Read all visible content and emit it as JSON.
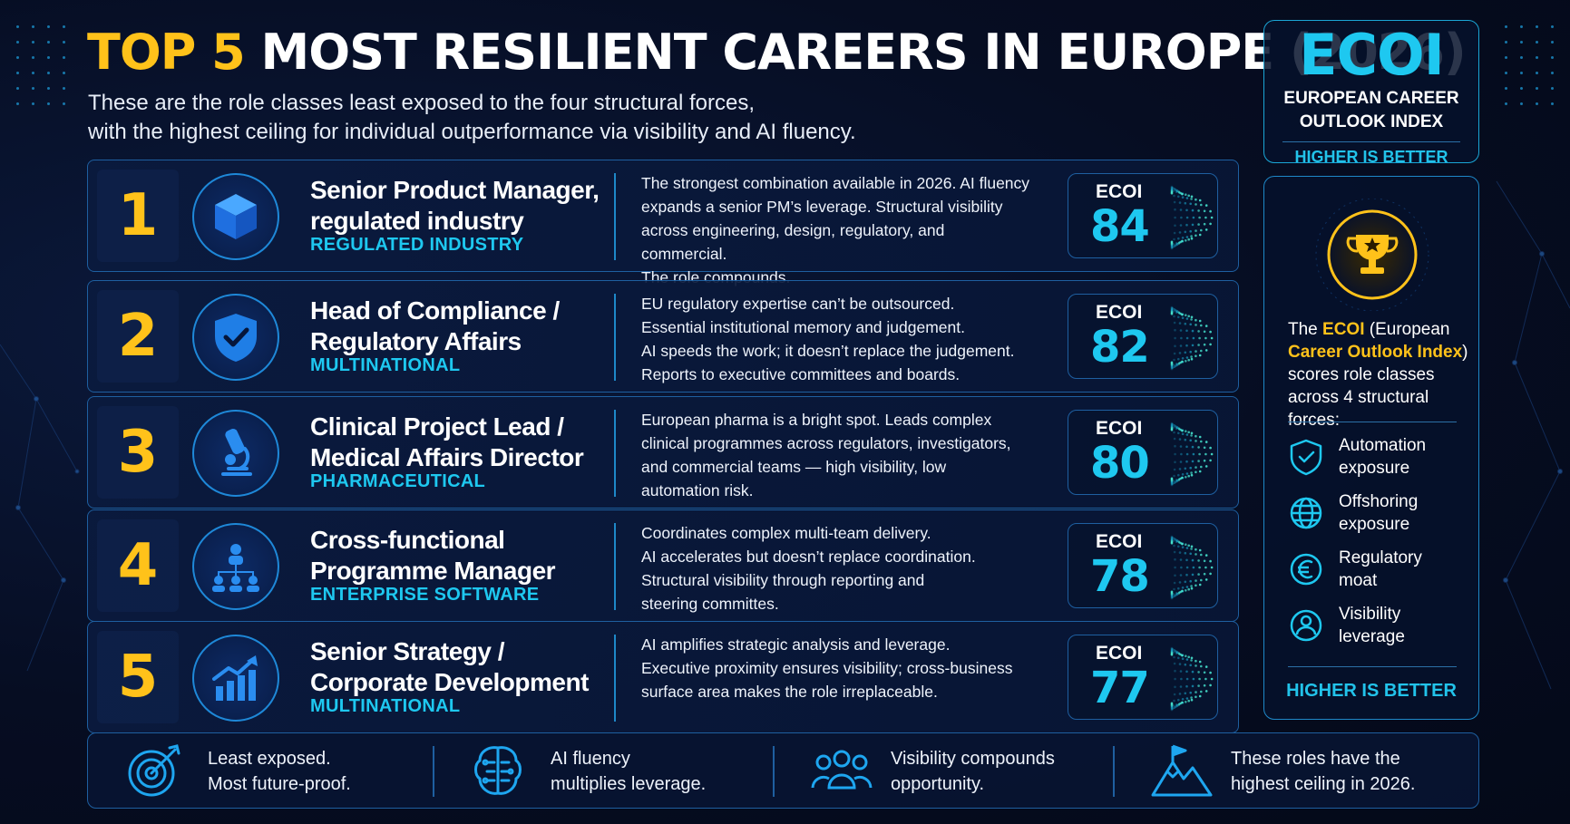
{
  "header": {
    "title_accent": "TOP 5",
    "title_rest": "MOST RESILIENT CAREERS IN EUROPE (2026)",
    "subtitle_line1": "These are the role classes least exposed to the four structural forces,",
    "subtitle_line2": "with the highest ceiling for individual outperformance via visibility and AI fluency."
  },
  "badge": {
    "acronym": "ECOI",
    "name_line1": "EUROPEAN CAREER",
    "name_line2": "OUTLOOK INDEX",
    "note": "HIGHER IS BETTER"
  },
  "careers": [
    {
      "rank": "1",
      "icon": "cube-icon",
      "role_line1": "Senior Product Manager,",
      "role_line2": "regulated industry",
      "sector": "REGULATED INDUSTRY",
      "description": [
        "The strongest combination available in 2026. AI fluency",
        "expands a senior PM’s leverage. Structural visibility",
        "across engineering, design, regulatory, and commercial.",
        "The role compounds."
      ],
      "score_label": "ECOI",
      "score": 84
    },
    {
      "rank": "2",
      "icon": "shield-check-icon",
      "role_line1": "Head of Compliance /",
      "role_line2": "Regulatory Affairs",
      "sector": "MULTINATIONAL",
      "description": [
        "EU regulatory expertise can’t be outsourced.",
        "Essential institutional memory and judgement.",
        "AI speeds the work; it doesn’t replace the judgement.",
        "Reports to executive committees and boards."
      ],
      "score_label": "ECOI",
      "score": 82
    },
    {
      "rank": "3",
      "icon": "microscope-icon",
      "role_line1": "Clinical Project Lead /",
      "role_line2": "Medical Affairs Director",
      "sector": "PHARMACEUTICAL",
      "description": [
        "European pharma is a bright spot. Leads complex",
        "clinical programmes across regulators, investigators,",
        "and commercial teams — high visibility, low",
        "automation risk."
      ],
      "score_label": "ECOI",
      "score": 80
    },
    {
      "rank": "4",
      "icon": "org-chart-icon",
      "role_line1": "Cross-functional",
      "role_line2": "Programme Manager",
      "sector": "ENTERPRISE SOFTWARE",
      "description": [
        "Coordinates complex multi-team delivery.",
        "AI accelerates but doesn’t replace coordination.",
        "Structural visibility through reporting and",
        "steering committes."
      ],
      "score_label": "ECOI",
      "score": 78
    },
    {
      "rank": "5",
      "icon": "growth-chart-icon",
      "role_line1": "Senior Strategy /",
      "role_line2": "Corporate Development",
      "sector": "MULTINATIONAL",
      "description": [
        "AI amplifies strategic analysis and leverage.",
        "Executive proximity ensures visibility; cross-business",
        "surface area makes the role irreplaceable."
      ],
      "score_label": "ECOI",
      "score": 77
    }
  ],
  "panel": {
    "trophy_icon": "trophy-star-icon",
    "explain_pre": "The ",
    "explain_hl1": "ECOI",
    "explain_mid": " (European ",
    "explain_hl2": "Career Outlook Index",
    "explain_post": ") scores role classes across 4 structural forces:",
    "forces": [
      {
        "icon": "shield-icon",
        "line1": "Automation",
        "line2": "exposure"
      },
      {
        "icon": "globe-icon",
        "line1": "Offshoring",
        "line2": "exposure"
      },
      {
        "icon": "euro-icon",
        "line1": "Regulatory",
        "line2": "moat"
      },
      {
        "icon": "person-icon",
        "line1": "Visibility",
        "line2": "leverage"
      }
    ],
    "note": "HIGHER IS BETTER"
  },
  "footer": [
    {
      "icon": "target-icon",
      "line1": "Least exposed.",
      "line2": "Most future-proof."
    },
    {
      "icon": "brain-circuit-icon",
      "line1": "AI fluency",
      "line2": "multiplies leverage."
    },
    {
      "icon": "people-group-icon",
      "line1": "Visibility compounds",
      "line2": "opportunity."
    },
    {
      "icon": "mountain-flag-icon",
      "line1": "These roles have the",
      "line2": "highest ceiling in 2026."
    }
  ],
  "colors": {
    "accent_yellow": "#ffc21a",
    "accent_cyan": "#1ec8f0",
    "border_blue": "#1e5fa0",
    "background": "#060d22"
  }
}
